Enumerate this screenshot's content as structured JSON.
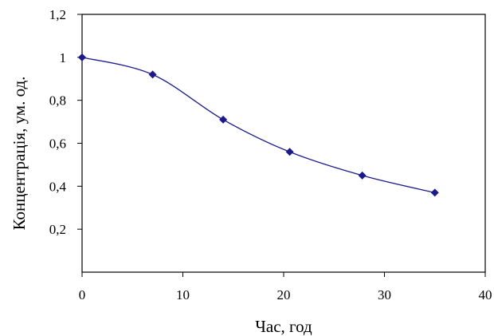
{
  "chart_data": {
    "type": "scatter",
    "title": "",
    "xlabel": "Час, год",
    "ylabel": "Концентрація, ум. од.",
    "xlim": [
      0,
      40
    ],
    "ylim": [
      0,
      1.2
    ],
    "x_ticks": [
      {
        "value": 0,
        "label": "0"
      },
      {
        "value": 10,
        "label": "10"
      },
      {
        "value": 20,
        "label": "20"
      },
      {
        "value": 30,
        "label": "30"
      },
      {
        "value": 40,
        "label": "40"
      }
    ],
    "y_ticks": [
      {
        "value": 0.2,
        "label": "0,2"
      },
      {
        "value": 0.4,
        "label": "0,4"
      },
      {
        "value": 0.6,
        "label": "0,6"
      },
      {
        "value": 0.8,
        "label": "0,8"
      },
      {
        "value": 1.0,
        "label": "1"
      },
      {
        "value": 1.2,
        "label": "1,2"
      }
    ],
    "grid": false,
    "legend": "none",
    "line": "smoothed",
    "marker": "diamond",
    "color": "#1a1a8c",
    "series": [
      {
        "x": [
          0,
          7,
          14,
          20.6,
          27.8,
          35
        ],
        "y": [
          1.0,
          0.92,
          0.71,
          0.56,
          0.45,
          0.37
        ]
      }
    ]
  }
}
